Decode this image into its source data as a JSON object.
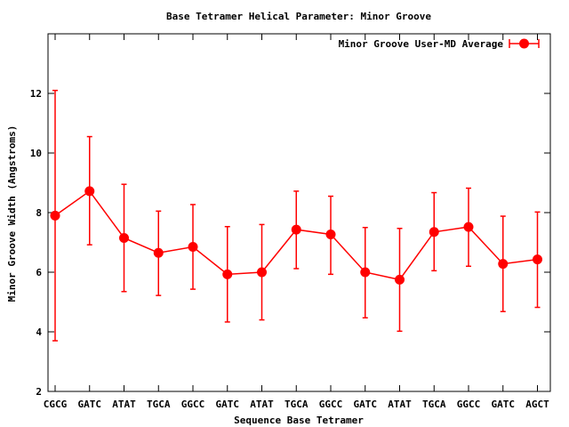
{
  "chart_data": {
    "type": "line",
    "title": "Base Tetramer Helical Parameter: Minor Groove",
    "xlabel": "Sequence Base Tetramer",
    "ylabel": "Minor Groove Width (Angstroms)",
    "ylim": [
      2,
      14
    ],
    "yticks": [
      2,
      4,
      6,
      8,
      10,
      12
    ],
    "categories": [
      "CGCG",
      "GATC",
      "ATAT",
      "TGCA",
      "GGCC",
      "GATC",
      "ATAT",
      "TGCA",
      "GGCC",
      "GATC",
      "ATAT",
      "TGCA",
      "GGCC",
      "GATC",
      "AGCT"
    ],
    "grid": false,
    "legend_position": "top-right",
    "series": [
      {
        "name": "Minor Groove User-MD Average",
        "color": "#ff0000",
        "values": [
          7.9,
          8.72,
          7.15,
          6.65,
          6.85,
          5.93,
          6.0,
          7.43,
          7.27,
          6.0,
          5.75,
          7.35,
          7.52,
          6.28,
          6.43
        ],
        "err_low": [
          3.7,
          6.92,
          5.35,
          5.22,
          5.43,
          4.33,
          4.4,
          6.12,
          5.93,
          4.47,
          4.02,
          6.05,
          6.2,
          4.68,
          4.82
        ],
        "err_high": [
          12.1,
          10.55,
          8.95,
          8.05,
          8.27,
          7.53,
          7.6,
          8.72,
          8.55,
          7.5,
          7.47,
          8.67,
          8.82,
          7.88,
          8.02
        ]
      }
    ]
  }
}
